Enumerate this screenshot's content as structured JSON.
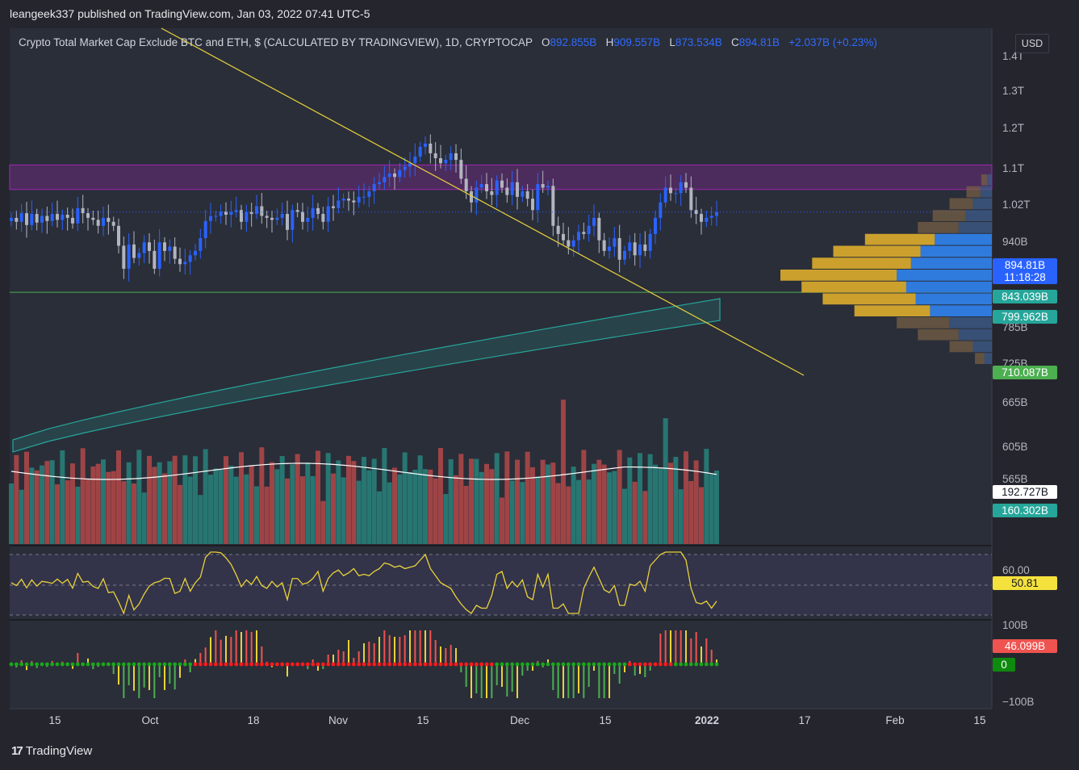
{
  "header": {
    "publisher": "leangeek337 published on TradingView.com, Jan 03, 2022 07:41 UTC-5"
  },
  "legend": {
    "title": "Crypto Total Market Cap Exclude BTC and ETH, $ (CALCULATED BY TRADINGVIEW), 1D, CRYPTOCAP",
    "o_label": "O",
    "o_value": "892.855B",
    "h_label": "H",
    "h_value": "909.557B",
    "l_label": "L",
    "l_value": "873.534B",
    "c_label": "C",
    "c_value": "894.81B",
    "change": "+2.037B (+0.23%)"
  },
  "currency": "USD",
  "footer": {
    "brand": "TradingView",
    "logo_icon": "tradingview-logo-icon"
  },
  "colors": {
    "up": "#2962ff",
    "down": "#b2b5be",
    "ema_band": "#26a69a",
    "trendline": "#e9d23a",
    "resistance_zone": "#9c27b0",
    "support": "#4caf50",
    "vol_up": "#26a69a",
    "vol_down": "#ef5350",
    "rsi": "#e9d23a"
  },
  "chart_data": [
    {
      "type": "candlestick",
      "title": "Crypto Total Market Cap Exclude BTC and ETH",
      "y_scale": "log",
      "x_tick_labels": [
        "15",
        "Oct",
        "18",
        "Nov",
        "15",
        "Dec",
        "15",
        "2022",
        "17",
        "Feb",
        "15"
      ],
      "y_tick_labels": [
        "1.4T",
        "1.3T",
        "1.2T",
        "1.1T",
        "1.02T",
        "940B",
        "785B",
        "725B",
        "665B",
        "605B",
        "565B"
      ],
      "price_badges": [
        {
          "label": "894.81B",
          "sub": "11:18:28",
          "color": "#2962ff"
        },
        {
          "label": "843.039B",
          "color": "#26a69a"
        },
        {
          "label": "799.962B",
          "color": "#26a69a"
        },
        {
          "label": "710.087B",
          "color": "#4caf50"
        }
      ],
      "ohlc_last": {
        "open": "892.855B",
        "high": "909.557B",
        "low": "873.534B",
        "close": "894.81B"
      },
      "close_series": [
        880,
        870,
        892,
        862,
        890,
        868,
        885,
        872,
        890,
        875,
        888,
        880,
        866,
        905,
        892,
        880,
        875,
        860,
        880,
        870,
        860,
        812,
        760,
        815,
        784,
        795,
        820,
        800,
        760,
        820,
        800,
        810,
        782,
        770,
        775,
        790,
        800,
        830,
        872,
        884,
        885,
        896,
        888,
        895,
        900,
        870,
        895,
        890,
        910,
        885,
        880,
        875,
        880,
        890,
        850,
        900,
        895,
        870,
        880,
        905,
        890,
        870,
        910,
        905,
        925,
        930,
        925,
        920,
        935,
        935,
        950,
        970,
        975,
        990,
        1000,
        990,
        1010,
        1020,
        1030,
        1050,
        1080,
        1090,
        1060,
        1045,
        1030,
        1040,
        1060,
        1040,
        985,
        950,
        920,
        960,
        970,
        950,
        940,
        980,
        960,
        940,
        975,
        935,
        950,
        930,
        900,
        970,
        960,
        965,
        860,
        840,
        825,
        810,
        825,
        845,
        840,
        860,
        880,
        825,
        800,
        810,
        830,
        780,
        800,
        820,
        790,
        815,
        800,
        840,
        880,
        920,
        960,
        945,
        945,
        975,
        960,
        900,
        890,
        870,
        880,
        885,
        894.81
      ],
      "volume_profile_rows": 16,
      "resistance_zone": {
        "from": 955,
        "to": 1025
      },
      "support_level": 710.087
    },
    {
      "type": "bar",
      "title": "Volume",
      "badges": [
        "192.727B",
        "160.302B"
      ]
    },
    {
      "type": "line",
      "title": "RSI",
      "y_tick_labels": [
        "60.00"
      ],
      "last_value": "50.81"
    },
    {
      "type": "bar",
      "title": "Squeeze Momentum",
      "y_tick_labels": [
        "100B",
        "−100B"
      ],
      "badges": [
        "46.099B",
        "0"
      ]
    }
  ]
}
